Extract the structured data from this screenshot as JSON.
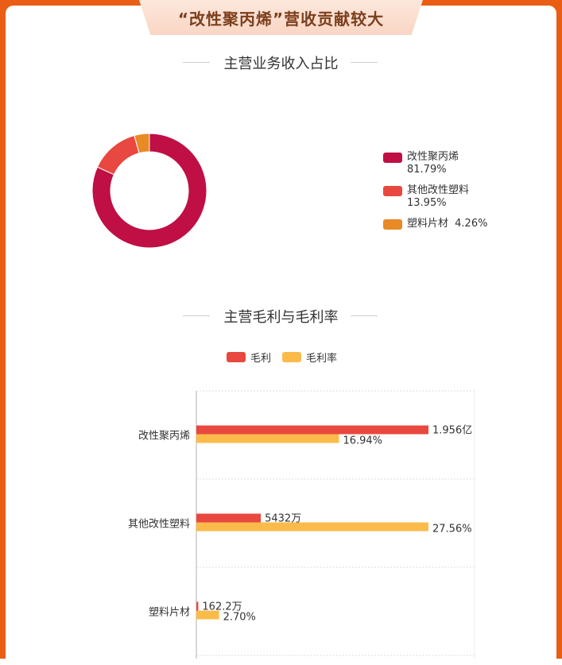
{
  "banner_title": "“改性聚丙烯”营收贡献较大",
  "colors": {
    "frame": "#ea5d15",
    "series_primary": "#bf0f45",
    "series_second": "#e8483f",
    "series_third": "#e88a26",
    "gross_profit": "#e8483f",
    "gross_margin": "#fbbb4b"
  },
  "chart_data": [
    {
      "type": "pie",
      "style": "donut",
      "title": "主营业务收入占比",
      "legend_position": "right",
      "slices": [
        {
          "label": "改性聚丙烯",
          "value": 81.79,
          "display": "81.79%",
          "color": "#bf0f45"
        },
        {
          "label": "其他改性塑料",
          "value": 13.95,
          "display": "13.95%",
          "color": "#e8483f"
        },
        {
          "label": "塑料片材",
          "value": 4.26,
          "display": "4.26%",
          "color": "#e88a26"
        }
      ]
    },
    {
      "type": "bar",
      "orientation": "horizontal",
      "title": "主营毛利与毛利率",
      "legend_position": "top",
      "grid": true,
      "categories": [
        "改性聚丙烯",
        "其他改性塑料",
        "塑料片材"
      ],
      "series": [
        {
          "name": "毛利",
          "values": [
            19560,
            5432,
            162.2
          ],
          "unit": "万元",
          "labels": [
            "1.956亿",
            "5432万",
            "162.2万"
          ],
          "color": "#e8483f"
        },
        {
          "name": "毛利率",
          "values": [
            16.94,
            27.56,
            2.7
          ],
          "unit": "%",
          "labels": [
            "16.94%",
            "27.56%",
            "2.70%"
          ],
          "color": "#fbbb4b"
        }
      ]
    }
  ]
}
